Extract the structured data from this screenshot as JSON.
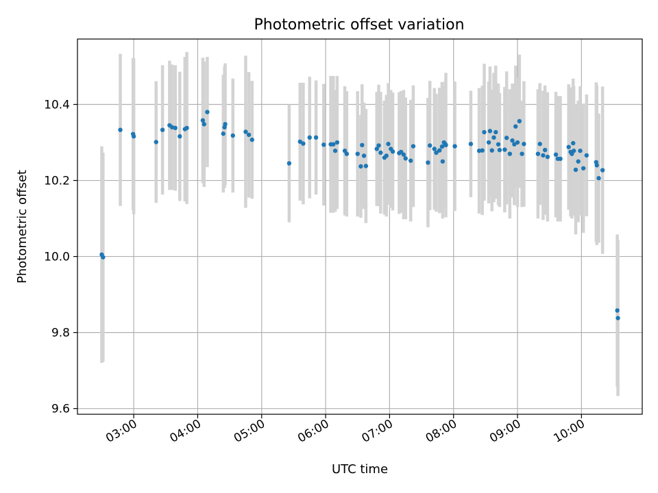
{
  "chart_data": {
    "type": "scatter",
    "title": "Photometric offset variation",
    "xlabel": "UTC time",
    "ylabel": "Photometric offset",
    "x_unit": "UTC hours",
    "xlim": [
      2.12,
      10.95
    ],
    "ylim": [
      9.585,
      10.572
    ],
    "x_ticks": [
      {
        "value": 3,
        "label": "03:00"
      },
      {
        "value": 4,
        "label": "04:00"
      },
      {
        "value": 5,
        "label": "05:00"
      },
      {
        "value": 6,
        "label": "06:00"
      },
      {
        "value": 7,
        "label": "07:00"
      },
      {
        "value": 8,
        "label": "08:00"
      },
      {
        "value": 9,
        "label": "09:00"
      },
      {
        "value": 10,
        "label": "10:00"
      }
    ],
    "y_ticks": [
      {
        "value": 9.6,
        "label": "9.6"
      },
      {
        "value": 9.8,
        "label": "9.8"
      },
      {
        "value": 10.0,
        "label": "10.0"
      },
      {
        "value": 10.2,
        "label": "10.2"
      },
      {
        "value": 10.4,
        "label": "10.4"
      }
    ],
    "grid": true,
    "colors": {
      "points": "#1f77b4",
      "errorbars": "#d3d3d3",
      "grid": "#b0b0b0"
    },
    "series": [
      {
        "values_format": "[x_hours, y, error]",
        "points": [
          [
            2.5,
            10.005,
            0.285
          ],
          [
            2.52,
            9.998,
            0.275
          ],
          [
            2.79,
            10.333,
            0.2
          ],
          [
            2.99,
            10.322,
            0.2
          ],
          [
            3.0,
            10.316,
            0.205
          ],
          [
            3.35,
            10.301,
            0.16
          ],
          [
            3.45,
            10.333,
            0.17
          ],
          [
            3.56,
            10.345,
            0.17
          ],
          [
            3.6,
            10.34,
            0.165
          ],
          [
            3.65,
            10.338,
            0.165
          ],
          [
            3.72,
            10.316,
            0.17
          ],
          [
            3.8,
            10.335,
            0.19
          ],
          [
            3.83,
            10.338,
            0.2
          ],
          [
            4.08,
            10.358,
            0.165
          ],
          [
            4.1,
            10.348,
            0.165
          ],
          [
            4.15,
            10.38,
            0.145
          ],
          [
            4.4,
            10.323,
            0.155
          ],
          [
            4.42,
            10.34,
            0.16
          ],
          [
            4.43,
            10.348,
            0.16
          ],
          [
            4.55,
            10.318,
            0.15
          ],
          [
            4.75,
            10.328,
            0.2
          ],
          [
            4.8,
            10.32,
            0.165
          ],
          [
            4.85,
            10.307,
            0.155
          ],
          [
            5.43,
            10.245,
            0.155
          ],
          [
            5.6,
            10.302,
            0.155
          ],
          [
            5.65,
            10.297,
            0.16
          ],
          [
            5.75,
            10.313,
            0.16
          ],
          [
            5.85,
            10.313,
            0.15
          ],
          [
            5.97,
            10.294,
            0.16
          ],
          [
            6.08,
            10.295,
            0.18
          ],
          [
            6.12,
            10.295,
            0.18
          ],
          [
            6.15,
            10.278,
            0.16
          ],
          [
            6.18,
            10.3,
            0.175
          ],
          [
            6.3,
            10.278,
            0.17
          ],
          [
            6.33,
            10.27,
            0.165
          ],
          [
            6.5,
            10.27,
            0.165
          ],
          [
            6.55,
            10.237,
            0.135
          ],
          [
            6.57,
            10.293,
            0.16
          ],
          [
            6.6,
            10.265,
            0.14
          ],
          [
            6.63,
            10.238,
            0.15
          ],
          [
            6.8,
            10.283,
            0.15
          ],
          [
            6.83,
            10.292,
            0.16
          ],
          [
            6.86,
            10.273,
            0.16
          ],
          [
            6.92,
            10.26,
            0.15
          ],
          [
            6.95,
            10.265,
            0.16
          ],
          [
            6.98,
            10.296,
            0.16
          ],
          [
            7.02,
            10.283,
            0.155
          ],
          [
            7.05,
            10.276,
            0.155
          ],
          [
            7.15,
            10.272,
            0.16
          ],
          [
            7.18,
            10.275,
            0.16
          ],
          [
            7.22,
            10.268,
            0.17
          ],
          [
            7.25,
            10.258,
            0.16
          ],
          [
            7.33,
            10.252,
            0.16
          ],
          [
            7.37,
            10.29,
            0.16
          ],
          [
            7.6,
            10.247,
            0.17
          ],
          [
            7.63,
            10.292,
            0.17
          ],
          [
            7.7,
            10.283,
            0.16
          ],
          [
            7.73,
            10.273,
            0.155
          ],
          [
            7.78,
            10.279,
            0.165
          ],
          [
            7.82,
            10.289,
            0.17
          ],
          [
            7.83,
            10.25,
            0.15
          ],
          [
            7.85,
            10.3,
            0.15
          ],
          [
            7.87,
            10.296,
            0.165
          ],
          [
            7.88,
            10.293,
            0.19
          ],
          [
            8.02,
            10.29,
            0.17
          ],
          [
            8.27,
            10.296,
            0.14
          ],
          [
            8.4,
            10.278,
            0.165
          ],
          [
            8.45,
            10.279,
            0.17
          ],
          [
            8.48,
            10.327,
            0.18
          ],
          [
            8.55,
            10.3,
            0.16
          ],
          [
            8.57,
            10.33,
            0.17
          ],
          [
            8.6,
            10.279,
            0.16
          ],
          [
            8.63,
            10.313,
            0.17
          ],
          [
            8.66,
            10.327,
            0.175
          ],
          [
            8.7,
            10.295,
            0.16
          ],
          [
            8.72,
            10.28,
            0.15
          ],
          [
            8.8,
            10.281,
            0.165
          ],
          [
            8.83,
            10.312,
            0.175
          ],
          [
            8.88,
            10.27,
            0.17
          ],
          [
            8.92,
            10.305,
            0.15
          ],
          [
            8.95,
            10.295,
            0.16
          ],
          [
            8.97,
            10.342,
            0.16
          ],
          [
            9.0,
            10.3,
            0.17
          ],
          [
            9.03,
            10.356,
            0.175
          ],
          [
            9.07,
            10.27,
            0.14
          ],
          [
            9.1,
            10.296,
            0.165
          ],
          [
            9.32,
            10.27,
            0.17
          ],
          [
            9.35,
            10.296,
            0.16
          ],
          [
            9.4,
            10.266,
            0.17
          ],
          [
            9.43,
            10.28,
            0.17
          ],
          [
            9.47,
            10.262,
            0.17
          ],
          [
            9.6,
            10.268,
            0.165
          ],
          [
            9.63,
            10.257,
            0.165
          ],
          [
            9.67,
            10.257,
            0.165
          ],
          [
            9.8,
            10.288,
            0.165
          ],
          [
            9.83,
            10.275,
            0.17
          ],
          [
            9.85,
            10.27,
            0.17
          ],
          [
            9.87,
            10.298,
            0.17
          ],
          [
            9.88,
            10.278,
            0.17
          ],
          [
            9.91,
            10.228,
            0.17
          ],
          [
            9.95,
            10.25,
            0.16
          ],
          [
            9.98,
            10.278,
            0.17
          ],
          [
            10.03,
            10.232,
            0.17
          ],
          [
            10.08,
            10.266,
            0.16
          ],
          [
            10.23,
            10.248,
            0.21
          ],
          [
            10.24,
            10.24,
            0.21
          ],
          [
            10.27,
            10.206,
            0.17
          ],
          [
            10.33,
            10.227,
            0.22
          ],
          [
            10.56,
            9.858,
            0.2
          ],
          [
            10.57,
            9.838,
            0.205
          ]
        ]
      }
    ]
  }
}
